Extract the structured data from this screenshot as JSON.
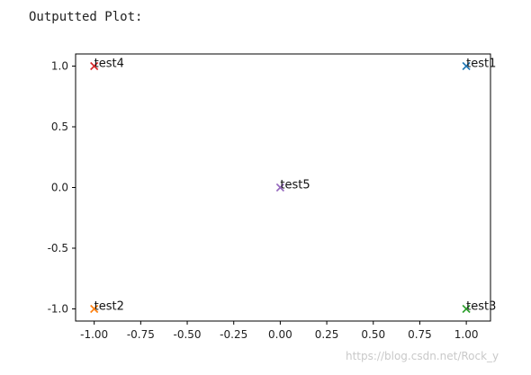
{
  "page": {
    "heading": "Outputted Plot:",
    "watermark": "https://blog.csdn.net/Rock_y"
  },
  "chart_data": {
    "type": "scatter",
    "title": "",
    "xlabel": "",
    "ylabel": "",
    "xlim": [
      -1.1,
      1.13
    ],
    "ylim": [
      -1.1,
      1.1
    ],
    "grid": false,
    "legend": "none",
    "marker": "x",
    "xticks": [
      "-1.00",
      "-0.75",
      "-0.50",
      "-0.25",
      "0.00",
      "0.25",
      "0.50",
      "0.75",
      "1.00"
    ],
    "xtick_values": [
      -1.0,
      -0.75,
      -0.5,
      -0.25,
      0.0,
      0.25,
      0.5,
      0.75,
      1.0
    ],
    "yticks": [
      "1.0",
      "0.5",
      "0.0",
      "-0.5",
      "-1.0"
    ],
    "ytick_values": [
      1.0,
      0.5,
      0.0,
      -0.5,
      -1.0
    ],
    "points": [
      {
        "label": "test1",
        "x": 1.0,
        "y": 1.0,
        "color": "#1f77b4"
      },
      {
        "label": "test2",
        "x": -1.0,
        "y": -1.0,
        "color": "#ff7f0e"
      },
      {
        "label": "test3",
        "x": 1.0,
        "y": -1.0,
        "color": "#2ca02c"
      },
      {
        "label": "test4",
        "x": -1.0,
        "y": 1.0,
        "color": "#d62728"
      },
      {
        "label": "test5",
        "x": 0.0,
        "y": 0.0,
        "color": "#9467bd"
      }
    ]
  }
}
